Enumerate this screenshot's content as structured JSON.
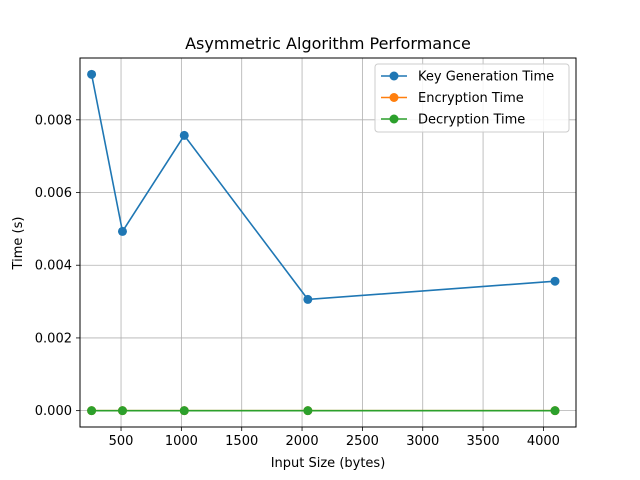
{
  "chart_data": {
    "type": "line",
    "title": "Asymmetric Algorithm Performance",
    "xlabel": "Input Size (bytes)",
    "ylabel": "Time (s)",
    "xlim": [
      160,
      4270
    ],
    "ylim": [
      -0.00045,
      0.0097
    ],
    "x_ticks": [
      500,
      1000,
      1500,
      2000,
      2500,
      3000,
      3500,
      4000
    ],
    "y_ticks": [
      0.0,
      0.002,
      0.004,
      0.006,
      0.008
    ],
    "y_tick_labels": [
      "0.000",
      "0.002",
      "0.004",
      "0.006",
      "0.008"
    ],
    "grid": true,
    "legend_position": "top-right",
    "x": [
      256,
      512,
      1024,
      2048,
      4096
    ],
    "series": [
      {
        "name": "Key Generation Time",
        "color": "#1f77b4",
        "values": [
          0.00925,
          0.00493,
          0.00757,
          0.00306,
          0.00356
        ]
      },
      {
        "name": "Encryption Time",
        "color": "#ff7f0e",
        "values": [
          0.0,
          0.0,
          0.0,
          0.0,
          0.0
        ]
      },
      {
        "name": "Decryption Time",
        "color": "#2ca02c",
        "values": [
          0.0,
          0.0,
          0.0,
          0.0,
          0.0
        ]
      }
    ]
  }
}
